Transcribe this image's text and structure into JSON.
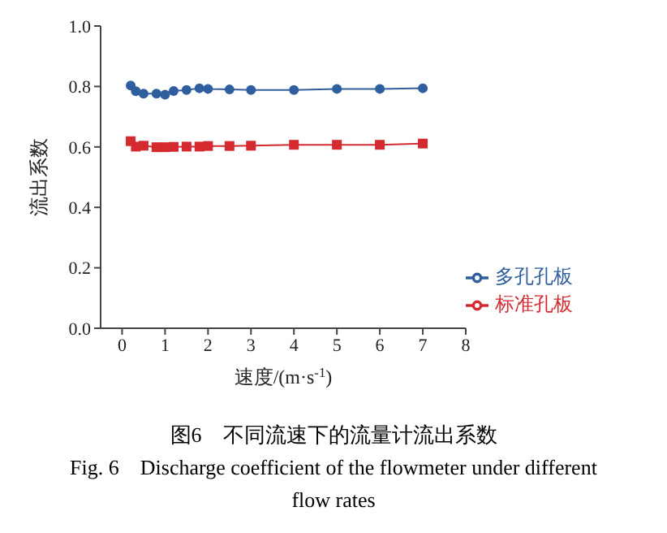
{
  "chart_data": {
    "type": "line",
    "xlabel": "速度/(m·s$^{-1}$)",
    "ylabel": "流出系数",
    "xlim": [
      -0.5,
      8
    ],
    "xticks": [
      0,
      1,
      2,
      3,
      4,
      5,
      6,
      7,
      8
    ],
    "ylim": [
      0,
      1
    ],
    "yticks": [
      {
        "value": 0,
        "label": "0.0"
      },
      0.2,
      0.4,
      0.6,
      0.8,
      {
        "value": 1,
        "label": "1.0"
      }
    ],
    "x": [
      0.2,
      0.32,
      0.5,
      0.8,
      1.0,
      1.2,
      1.5,
      1.8,
      2.0,
      2.5,
      3.0,
      4.0,
      5.0,
      6.0,
      7.0
    ],
    "series": [
      {
        "name": "标准孔板",
        "color": "#d42a2f",
        "marker": "square",
        "values": [
          0.619,
          0.601,
          0.604,
          0.599,
          0.599,
          0.6,
          0.601,
          0.601,
          0.603,
          0.603,
          0.604,
          0.607,
          0.607,
          0.607,
          0.611
        ]
      },
      {
        "name": "多孔孔板",
        "color": "#2f5e9e",
        "marker": "circle",
        "values": [
          0.803,
          0.784,
          0.776,
          0.776,
          0.773,
          0.785,
          0.788,
          0.794,
          0.792,
          0.79,
          0.788,
          0.788,
          0.792,
          0.792,
          0.794
        ]
      }
    ],
    "grid": false,
    "legend": "bottom right",
    "annotations": [
      "图6　不同流速下的流量计流出系数",
      "Fig. 6　Discharge coefficient of the flowmeter under different flow rates"
    ]
  }
}
